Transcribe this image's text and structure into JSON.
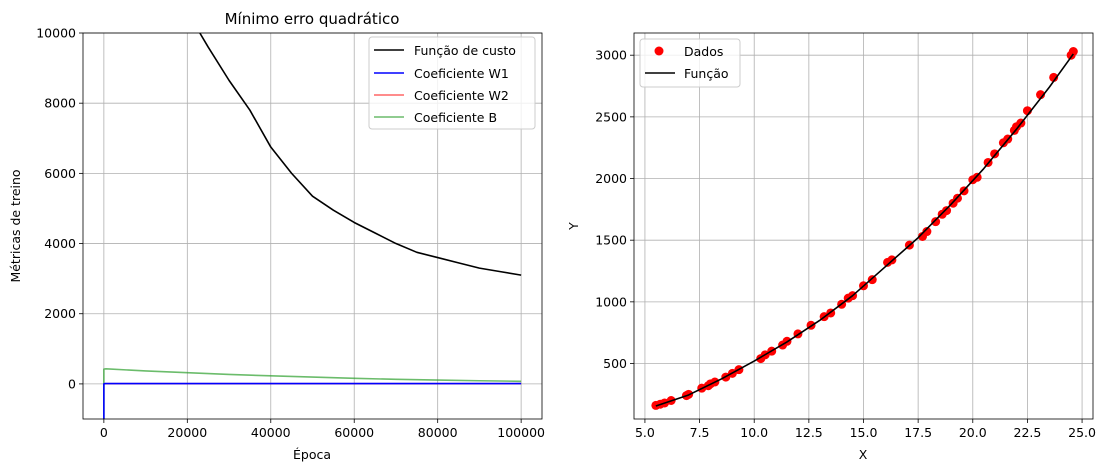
{
  "chart_data": [
    {
      "type": "line",
      "title": "Mínimo erro quadrático",
      "xlabel": "Época",
      "ylabel": "Métricas de treino",
      "xlim": [
        -5000,
        105000
      ],
      "ylim": [
        -1000,
        10000
      ],
      "xticks": [
        0,
        20000,
        40000,
        60000,
        80000,
        100000
      ],
      "xtick_labels": [
        "0",
        "20000",
        "40000",
        "60000",
        "80000",
        "100000"
      ],
      "yticks": [
        0,
        2000,
        4000,
        6000,
        8000,
        10000
      ],
      "ytick_labels": [
        "0",
        "2000",
        "4000",
        "6000",
        "8000",
        "10000"
      ],
      "grid": true,
      "legend_position": "upper right",
      "series": [
        {
          "name": "Função de custo",
          "color": "#000000",
          "x": [
            23000,
            25000,
            30000,
            35000,
            40000,
            45000,
            50000,
            55000,
            60000,
            65000,
            70000,
            75000,
            80000,
            85000,
            90000,
            95000,
            100000
          ],
          "y": [
            10000,
            9600,
            8650,
            7800,
            6750,
            6000,
            5350,
            4950,
            4600,
            4300,
            4000,
            3750,
            3600,
            3450,
            3300,
            3200,
            3100
          ]
        },
        {
          "name": "Coeficiente W1",
          "color": "#0000ff",
          "x": [
            0,
            0,
            300,
            100000
          ],
          "y": [
            -1000,
            0,
            10,
            10
          ]
        },
        {
          "name": "Coeficiente W2",
          "color": "#ff0000",
          "opacity": 0.6,
          "x": [
            0,
            300,
            100000
          ],
          "y": [
            0,
            5,
            5
          ]
        },
        {
          "name": "Coeficiente B",
          "color": "#2ca02c",
          "opacity": 0.7,
          "x": [
            0,
            0,
            500,
            10000,
            20000,
            30000,
            40000,
            50000,
            60000,
            70000,
            80000,
            90000,
            100000
          ],
          "y": [
            -1000,
            420,
            430,
            370,
            320,
            270,
            230,
            195,
            160,
            130,
            110,
            90,
            75
          ]
        }
      ]
    },
    {
      "type": "scatter",
      "title": "",
      "xlabel": "X",
      "ylabel": "Y",
      "xlim": [
        4.5,
        25.5
      ],
      "ylim": [
        50,
        3180
      ],
      "xticks": [
        5.0,
        7.5,
        10.0,
        12.5,
        15.0,
        17.5,
        20.0,
        22.5,
        25.0
      ],
      "xtick_labels": [
        "5.0",
        "7.5",
        "10.0",
        "12.5",
        "15.0",
        "17.5",
        "20.0",
        "22.5",
        "25.0"
      ],
      "yticks": [
        500,
        1000,
        1500,
        2000,
        2500,
        3000
      ],
      "ytick_labels": [
        "500",
        "1000",
        "1500",
        "2000",
        "2500",
        "3000"
      ],
      "grid": true,
      "legend_position": "upper left",
      "scatter_series": {
        "name": "Dados",
        "color": "#ff0000",
        "x": [
          5.5,
          5.7,
          5.9,
          6.2,
          6.9,
          7.0,
          7.6,
          7.9,
          8.0,
          8.2,
          8.7,
          9.0,
          9.3,
          10.3,
          10.5,
          10.8,
          11.3,
          11.5,
          12.0,
          12.6,
          13.2,
          13.5,
          14.0,
          14.3,
          14.5,
          15.0,
          15.4,
          16.1,
          16.3,
          17.1,
          17.7,
          17.9,
          18.3,
          18.6,
          18.8,
          19.1,
          19.3,
          19.6,
          20.0,
          20.2,
          20.7,
          21.0,
          21.4,
          21.6,
          21.9,
          22.0,
          22.2,
          22.5,
          23.1,
          23.7,
          24.5,
          24.6
        ],
        "y": [
          160,
          170,
          180,
          200,
          240,
          250,
          300,
          320,
          335,
          350,
          390,
          420,
          450,
          540,
          570,
          600,
          650,
          680,
          740,
          810,
          880,
          910,
          980,
          1030,
          1050,
          1130,
          1180,
          1320,
          1340,
          1460,
          1530,
          1570,
          1650,
          1710,
          1740,
          1800,
          1840,
          1900,
          1990,
          2010,
          2130,
          2200,
          2290,
          2320,
          2390,
          2420,
          2450,
          2550,
          2680,
          2820,
          3000,
          3030
        ]
      },
      "line_series": {
        "name": "Função",
        "color": "#000000",
        "x": [
          5.5,
          7,
          8.5,
          10,
          11.5,
          13,
          14.5,
          16,
          17.5,
          19,
          20.5,
          22,
          23.5,
          24.6
        ],
        "y": [
          155,
          245,
          375,
          520,
          675,
          850,
          1050,
          1285,
          1520,
          1790,
          2080,
          2400,
          2740,
          3010
        ]
      }
    }
  ]
}
